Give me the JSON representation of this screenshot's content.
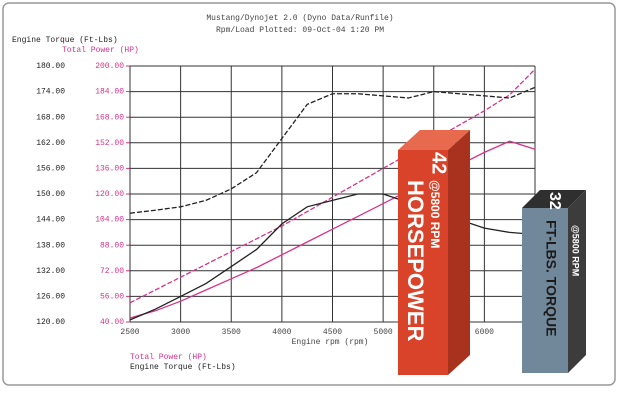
{
  "chart_data": {
    "type": "line",
    "title": "Mustang/Dynojet 2.0 (Dyno Data/Runfile)",
    "subtitle": "Rpm/Load Plotted: 09-Oct-04 1:20 PM",
    "y_label": "Engine Torque (Ft-Lbs)",
    "y2_label": "Total Power (HP)",
    "x_label": "Engine rpm (rpm)",
    "x": [
      2500,
      2750,
      3000,
      3250,
      3500,
      3750,
      4000,
      4250,
      4500,
      4750,
      5000,
      5250,
      5500,
      5750,
      6000,
      6250,
      6500
    ],
    "xlim": [
      2500,
      6500
    ],
    "xticks": [
      2500,
      3000,
      3500,
      4000,
      4500,
      5000,
      5500,
      6000,
      6500
    ],
    "ylim": [
      120,
      180
    ],
    "yticks": [
      {
        "value": 120,
        "label": "120.00"
      },
      {
        "value": 126,
        "label": "126.00"
      },
      {
        "value": 132,
        "label": "132.00"
      },
      {
        "value": 138,
        "label": "138.00"
      },
      {
        "value": 144,
        "label": "144.00"
      },
      {
        "value": 150,
        "label": "150.00"
      },
      {
        "value": 156,
        "label": "156.00"
      },
      {
        "value": 162,
        "label": "162.00"
      },
      {
        "value": 168,
        "label": "168.00"
      },
      {
        "value": 174,
        "label": "174.00"
      },
      {
        "value": 180,
        "label": "180.00"
      }
    ],
    "y2lim": [
      40,
      200
    ],
    "y2ticks": [
      {
        "value": 40,
        "label": "40.00"
      },
      {
        "value": 56,
        "label": "56.00"
      },
      {
        "value": 72,
        "label": "72.00"
      },
      {
        "value": 88,
        "label": "88.00"
      },
      {
        "value": 104,
        "label": "104.00"
      },
      {
        "value": 120,
        "label": "120.00"
      },
      {
        "value": 136,
        "label": "136.00"
      },
      {
        "value": 152,
        "label": "152.00"
      },
      {
        "value": 168,
        "label": "168.00"
      },
      {
        "value": 184,
        "label": "184.00"
      },
      {
        "value": 200,
        "label": "200.00"
      }
    ],
    "grid": true,
    "series": [
      {
        "name": "Total Power (HP)",
        "color": "#d6338a",
        "axis": "y2",
        "values": [
          52,
          60,
          68,
          76,
          84,
          92,
          100,
          109,
          118,
          127,
          136,
          145,
          154,
          163,
          172,
          182,
          198
        ]
      },
      {
        "color": "#d6338a",
        "axis": "y2",
        "values": [
          42.5,
          47,
          53,
          60,
          67,
          74,
          82,
          90,
          98,
          106,
          114,
          122,
          130,
          138,
          146,
          153,
          148
        ]
      },
      {
        "name": "Engine Torque (Ft-Lbs)",
        "color": "#222222",
        "values": [
          145.5,
          146.2,
          147,
          148.5,
          151.2,
          155,
          163,
          171,
          173.5,
          173.5,
          173,
          172.5,
          174,
          173.5,
          173,
          172.5,
          175
        ]
      },
      {
        "color": "#222222",
        "values": [
          120.5,
          123,
          126,
          129,
          133,
          137,
          143,
          147,
          148.5,
          150,
          150,
          148,
          146,
          144,
          142,
          141,
          140.5
        ]
      }
    ],
    "badges": [
      {
        "value": 42,
        "rpm": "@5800 RPM",
        "label": "HORSEPOWER"
      },
      {
        "value": 32,
        "rpm": "@5800 RPM",
        "label": "FT-LBS. TORQUE"
      }
    ]
  }
}
